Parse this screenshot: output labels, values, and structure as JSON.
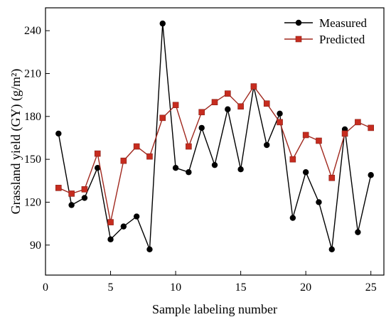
{
  "chart_data": {
    "type": "line",
    "xlabel": "Sample labeling number",
    "ylabel": "Grassland yield (GY) (g/m²)",
    "xlim": [
      0,
      26
    ],
    "ylim": [
      69,
      256
    ],
    "x_ticks": [
      0,
      5,
      10,
      15,
      20,
      25
    ],
    "y_ticks": [
      90,
      120,
      150,
      180,
      210,
      240
    ],
    "legend_position": "top-right",
    "x": [
      1,
      2,
      3,
      4,
      5,
      6,
      7,
      8,
      9,
      10,
      11,
      12,
      13,
      14,
      15,
      16,
      17,
      18,
      19,
      20,
      21,
      22,
      23,
      24,
      25
    ],
    "series": [
      {
        "name": "Measured",
        "color": "#000000",
        "marker": "circle",
        "values": [
          168,
          118,
          123,
          144,
          94,
          103,
          110,
          87,
          245,
          144,
          141,
          172,
          146,
          185,
          143,
          201,
          160,
          182,
          109,
          141,
          120,
          87,
          171,
          99,
          139
        ]
      },
      {
        "name": "Predicted",
        "color": "#a0281e",
        "marker": "square",
        "values": [
          130,
          126,
          129,
          154,
          106,
          149,
          159,
          152,
          179,
          188,
          159,
          183,
          190,
          196,
          187,
          201,
          189,
          176,
          150,
          167,
          163,
          137,
          168,
          176,
          172
        ]
      }
    ]
  }
}
